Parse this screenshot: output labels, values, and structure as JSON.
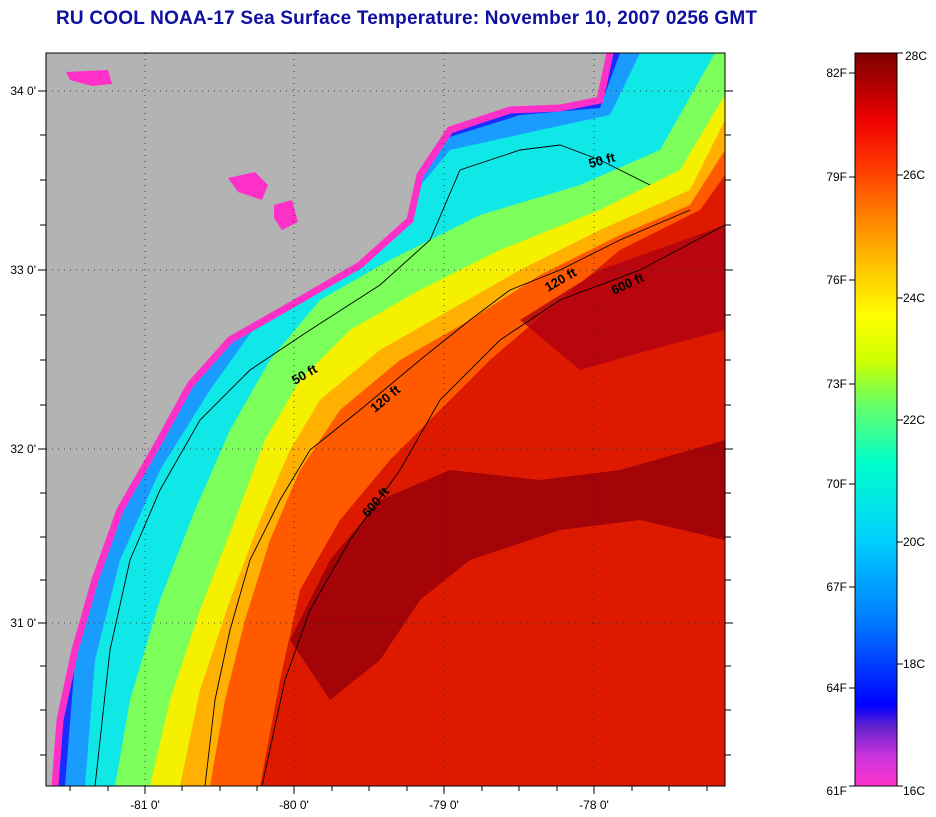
{
  "title": "RU COOL  NOAA-17  Sea Surface Temperature:  November 10, 2007 0256 GMT",
  "map": {
    "lat_ticks": [
      "34 0'",
      "33 0'",
      "32 0'",
      "31 0'"
    ],
    "lon_ticks": [
      "-81 0'",
      "-80 0'",
      "-79 0'",
      "-78 0'"
    ],
    "contour_labels": [
      "50 ft",
      "50 ft",
      "120 ft",
      "120 ft",
      "600 ft",
      "600 ft"
    ]
  },
  "colorbar": {
    "fahrenheit": [
      "82F",
      "79F",
      "76F",
      "73F",
      "70F",
      "67F",
      "64F",
      "61F"
    ],
    "celsius": [
      "28C",
      "26C",
      "24C",
      "22C",
      "20C",
      "18C",
      "16C"
    ],
    "colors": [
      "#ff33cc",
      "#aa33dd",
      "#5522cc",
      "#0000ff",
      "#0077ff",
      "#00ccff",
      "#00ffcc",
      "#66ff66",
      "#ccff00",
      "#ffff00",
      "#ffcc00",
      "#ff8800",
      "#ff4400",
      "#ee0000",
      "#aa0000",
      "#800000"
    ]
  },
  "colors": {
    "land": "#b3b3b3",
    "title": "#1010a0",
    "warm": "#cc1100",
    "gulfstream": "#990000"
  }
}
